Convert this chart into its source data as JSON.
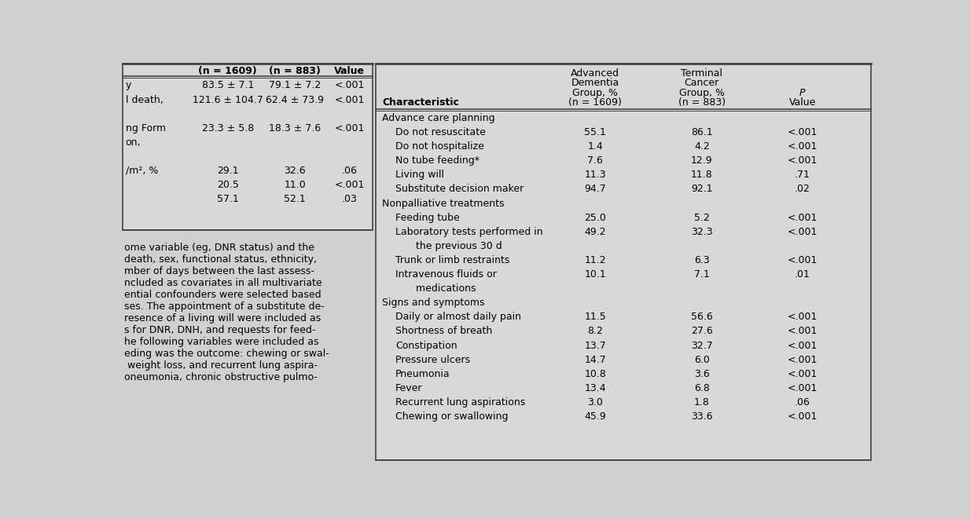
{
  "bg_color": "#d0d0d0",
  "table_bg": "#d8d8d8",
  "line_color": "#444444",
  "text_color": "#000000",
  "rows": [
    {
      "label": "Advance care planning",
      "indent": 0,
      "val1": "",
      "val2": "",
      "pval": "",
      "section": true
    },
    {
      "label": "Do not resuscitate",
      "indent": 1,
      "val1": "55.1",
      "val2": "86.1",
      "pval": "<.001"
    },
    {
      "label": "Do not hospitalize",
      "indent": 1,
      "val1": "1.4",
      "val2": "4.2",
      "pval": "<.001"
    },
    {
      "label": "No tube feeding*",
      "indent": 1,
      "val1": "7.6",
      "val2": "12.9",
      "pval": "<.001"
    },
    {
      "label": "Living will",
      "indent": 1,
      "val1": "11.3",
      "val2": "11.8",
      "pval": ".71"
    },
    {
      "label": "Substitute decision maker",
      "indent": 1,
      "val1": "94.7",
      "val2": "92.1",
      "pval": ".02"
    },
    {
      "label": "Nonpalliative treatments",
      "indent": 0,
      "val1": "",
      "val2": "",
      "pval": "",
      "section": true
    },
    {
      "label": "Feeding tube",
      "indent": 1,
      "val1": "25.0",
      "val2": "5.2",
      "pval": "<.001"
    },
    {
      "label": "Laboratory tests performed in",
      "indent": 1,
      "val1": "49.2",
      "val2": "32.3",
      "pval": "<.001"
    },
    {
      "label": "   the previous 30 d",
      "indent": 2,
      "val1": "",
      "val2": "",
      "pval": ""
    },
    {
      "label": "Trunk or limb restraints",
      "indent": 1,
      "val1": "11.2",
      "val2": "6.3",
      "pval": "<.001"
    },
    {
      "label": "Intravenous fluids or",
      "indent": 1,
      "val1": "10.1",
      "val2": "7.1",
      "pval": ".01"
    },
    {
      "label": "   medications",
      "indent": 2,
      "val1": "",
      "val2": "",
      "pval": ""
    },
    {
      "label": "Signs and symptoms",
      "indent": 0,
      "val1": "",
      "val2": "",
      "pval": "",
      "section": true
    },
    {
      "label": "Daily or almost daily pain",
      "indent": 1,
      "val1": "11.5",
      "val2": "56.6",
      "pval": "<.001"
    },
    {
      "label": "Shortness of breath",
      "indent": 1,
      "val1": "8.2",
      "val2": "27.6",
      "pval": "<.001"
    },
    {
      "label": "Constipation",
      "indent": 1,
      "val1": "13.7",
      "val2": "32.7",
      "pval": "<.001"
    },
    {
      "label": "Pressure ulcers",
      "indent": 1,
      "val1": "14.7",
      "val2": "6.0",
      "pval": "<.001"
    },
    {
      "label": "Pneumonia",
      "indent": 1,
      "val1": "10.8",
      "val2": "3.6",
      "pval": "<.001"
    },
    {
      "label": "Fever",
      "indent": 1,
      "val1": "13.4",
      "val2": "6.8",
      "pval": "<.001"
    },
    {
      "label": "Recurrent lung aspirations",
      "indent": 1,
      "val1": "3.0",
      "val2": "1.8",
      "pval": ".06"
    },
    {
      "label": "Chewing or swallowing",
      "indent": 1,
      "val1": "45.9",
      "val2": "33.6",
      "pval": "<.001"
    }
  ],
  "left_rows": [
    {
      "label": "y",
      "val1": "83.5 ± 7.1",
      "val2": "79.1 ± 7.2",
      "pval": "<.001"
    },
    {
      "label": "l death,",
      "val1": "121.6 ± 104.7",
      "val2": "62.4 ± 73.9",
      "pval": "<.001"
    },
    {
      "label": "",
      "val1": "",
      "val2": "",
      "pval": ""
    },
    {
      "label": "ng Form",
      "val1": "23.3 ± 5.8",
      "val2": "18.3 ± 7.6",
      "pval": "<.001"
    },
    {
      "label": "on,",
      "val1": "",
      "val2": "",
      "pval": ""
    },
    {
      "label": "",
      "val1": "",
      "val2": "",
      "pval": ""
    },
    {
      "label": "/m², %",
      "val1": "29.1",
      "val2": "32.6",
      "pval": ".06"
    },
    {
      "label": "",
      "val1": "20.5",
      "val2": "11.0",
      "pval": "<.001"
    },
    {
      "label": "",
      "val1": "57.1",
      "val2": "52.1",
      "pval": ".03"
    }
  ],
  "body_text": [
    "ome variable (eg, DNR status) and the",
    "death, sex, functional status, ethnicity,",
    "mber of days between the last assess-",
    "ncluded as covariates in all multivariate",
    "ential confounders were selected based",
    "ses. The appointment of a substitute de-",
    "resence of a living will were included as",
    "s for DNR, DNH, and requests for feed-",
    "he following variables were included as",
    "eding was the outcome: chewing or swal-",
    " weight loss, and recurrent lung aspira-",
    "oneumonia, chronic obstructive pulmo-"
  ]
}
